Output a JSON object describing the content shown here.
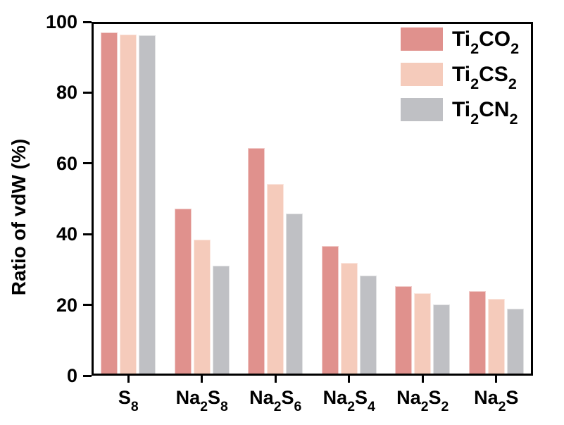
{
  "chart_data": {
    "type": "bar",
    "ylabel": "Ratio of vdW (%)",
    "ylim": [
      0,
      100
    ],
    "yticks": [
      0,
      20,
      40,
      60,
      80,
      100
    ],
    "grid": false,
    "legend_position": "top-right-inside",
    "categories": [
      "S_8_",
      "Na_2_S_8_",
      "Na_2_S_6_",
      "Na_2_S_4_",
      "Na_2_S_2_",
      "Na_2_S"
    ],
    "series": [
      {
        "name": "Ti_2_CO_2_",
        "color": "#E0918D",
        "values": [
          97.0,
          47.3,
          64.3,
          36.6,
          25.3,
          23.9
        ]
      },
      {
        "name": "Ti_2_CS_2_",
        "color": "#F5CBBB",
        "values": [
          96.5,
          38.4,
          54.1,
          31.8,
          23.4,
          21.7
        ]
      },
      {
        "name": "Ti_2_CN_2_",
        "color": "#BFC0C4",
        "values": [
          96.3,
          31.0,
          45.8,
          28.2,
          20.1,
          18.9
        ]
      }
    ],
    "axis_color": "#000000",
    "background_color": "#ffffff"
  }
}
